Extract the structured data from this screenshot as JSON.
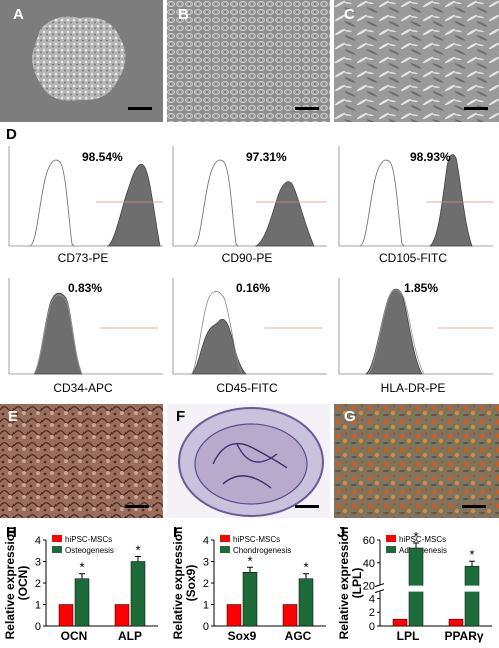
{
  "panels": {
    "A": "A",
    "B": "B",
    "C": "C",
    "D": "D",
    "E": "E",
    "F": "F",
    "G": "G",
    "H": "H",
    "I": "I",
    "J": "J"
  },
  "flow": [
    {
      "id": "cd73",
      "marker": "CD73-PE",
      "percent": "98.54%",
      "positive": true
    },
    {
      "id": "cd90",
      "marker": "CD90-PE",
      "percent": "97.31%",
      "positive": true
    },
    {
      "id": "cd105",
      "marker": "CD105-FITC",
      "percent": "98.93%",
      "positive": true
    },
    {
      "id": "cd34",
      "marker": "CD34-APC",
      "percent": "0.83%",
      "positive": false
    },
    {
      "id": "cd45",
      "marker": "CD45-FITC",
      "percent": "0.16%",
      "positive": false
    },
    {
      "id": "hla",
      "marker": "HLA-DR-PE",
      "percent": "1.85%",
      "positive": false
    }
  ],
  "chart_data": [
    {
      "type": "bar",
      "panel": "H",
      "ylabel": "Relative expression\n(OCN)",
      "categories": [
        "OCN",
        "ALP"
      ],
      "ylim": [
        0,
        4
      ],
      "yticks": [
        0,
        1,
        2,
        3,
        4
      ],
      "series": [
        {
          "name": "hiPSC-MSCs",
          "color": "#ff0000",
          "values": [
            1.0,
            1.0
          ]
        },
        {
          "name": "Osteogenesis",
          "color": "#1e6b3a",
          "values": [
            2.2,
            3.0
          ]
        }
      ],
      "significance": [
        "*",
        "*"
      ]
    },
    {
      "type": "bar",
      "panel": "I",
      "ylabel": "Relative expression\n(Sox9)",
      "categories": [
        "Sox9",
        "AGC"
      ],
      "ylim": [
        0,
        4
      ],
      "yticks": [
        0,
        1,
        2,
        3,
        4
      ],
      "series": [
        {
          "name": "hiPSC-MSCs",
          "color": "#ff0000",
          "values": [
            1.0,
            1.0
          ]
        },
        {
          "name": "Chondrogenesis",
          "color": "#1e6b3a",
          "values": [
            2.5,
            2.2
          ]
        }
      ],
      "significance": [
        "*",
        "*"
      ]
    },
    {
      "type": "bar",
      "panel": "J",
      "ylabel": "Relative expression\n(LPL)",
      "categories": [
        "LPL",
        "PPARγ"
      ],
      "yticks_lower": [
        0,
        2,
        4
      ],
      "yticks_upper": [
        20,
        40,
        60
      ],
      "axis_break": [
        5,
        20
      ],
      "series": [
        {
          "name": "hiPSC-MSCs",
          "color": "#ff0000",
          "values": [
            1.0,
            1.0
          ]
        },
        {
          "name": "Adipogenesis",
          "color": "#1e6b3a",
          "values": [
            53,
            37
          ]
        }
      ],
      "significance": [
        "*",
        "*"
      ]
    }
  ]
}
